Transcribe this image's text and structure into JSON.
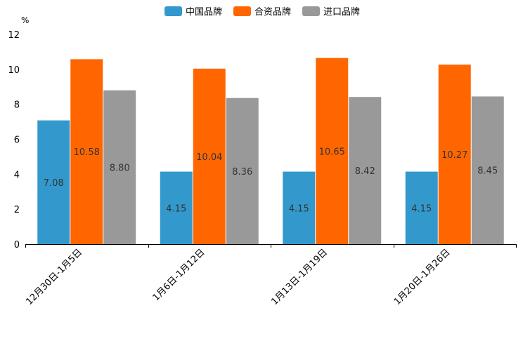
{
  "chart_data": {
    "type": "bar",
    "title": "",
    "unit_label": "%",
    "xlabel": "",
    "ylabel": "",
    "ylim": [
      0,
      12
    ],
    "yticks": [
      0,
      2,
      4,
      6,
      8,
      10,
      12
    ],
    "categories": [
      "12月30日-1月5日",
      "1月6日-1月12日",
      "1月13日-1月19日",
      "1月20日-1月26日"
    ],
    "series": [
      {
        "name": "中国品牌",
        "color": "#3399cc",
        "values": [
          7.08,
          4.15,
          4.15,
          4.15
        ],
        "labels": [
          "7.08",
          "4.15",
          "4.15",
          "4.15"
        ]
      },
      {
        "name": "合资品牌",
        "color": "#ff6600",
        "values": [
          10.58,
          10.04,
          10.65,
          10.27
        ],
        "labels": [
          "10.58",
          "10.04",
          "10.65",
          "10.27"
        ]
      },
      {
        "name": "进口品牌",
        "color": "#999999",
        "values": [
          8.8,
          8.36,
          8.42,
          8.45
        ],
        "labels": [
          "8.80",
          "8.36",
          "8.42",
          "8.45"
        ]
      }
    ],
    "legend_position": "top-center",
    "grid": false
  }
}
